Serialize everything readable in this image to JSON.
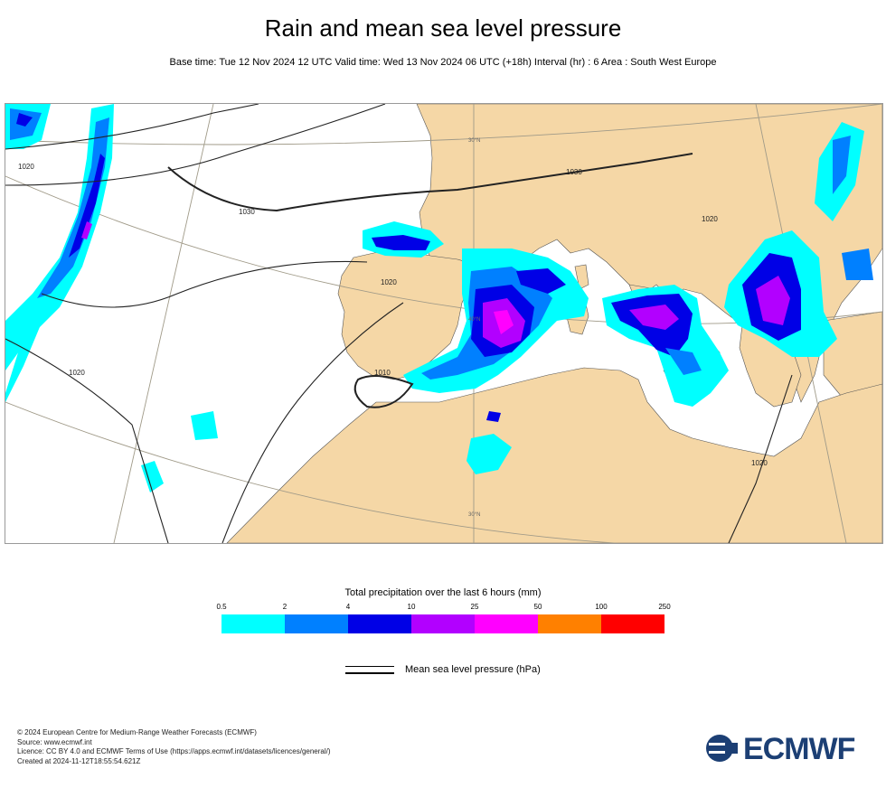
{
  "title": "Rain and mean sea level pressure",
  "subtitle": "Base time: Tue 12 Nov 2024 12 UTC Valid time: Wed 13 Nov 2024 06 UTC (+18h) Interval (hr) : 6 Area : South West Europe",
  "map": {
    "isobar_labels": [
      "1020",
      "1030",
      "1020",
      "1030",
      "1020",
      "1020",
      "1010",
      "1020"
    ],
    "graticule_labels": [
      "30°N",
      "30°N",
      "40°N"
    ],
    "land_color": "#f5d7a6",
    "sea_color": "#ffffff"
  },
  "legend": {
    "title": "Total precipitation over the last 6 hours (mm)",
    "thresholds": [
      "0.5",
      "2",
      "4",
      "10",
      "25",
      "50",
      "100",
      "250"
    ],
    "colors": [
      "#00ffff",
      "#0080ff",
      "#0000e6",
      "#b200ff",
      "#ff00ff",
      "#ff8000",
      "#ff0000"
    ],
    "isobar_label": "Mean sea level pressure (hPa)"
  },
  "footer": {
    "lines": [
      "© 2024 European Centre for Medium-Range Weather Forecasts (ECMWF)",
      "Source: www.ecmwf.int",
      "Licence: CC BY 4.0 and ECMWF Terms of Use (https://apps.ecmwf.int/datasets/licences/general/)",
      "Created at 2024-11-12T18:55:54.621Z"
    ]
  },
  "logo": {
    "text": "ECMWF",
    "icon": "ecmwf-logo-icon",
    "color": "#1c3f74"
  }
}
